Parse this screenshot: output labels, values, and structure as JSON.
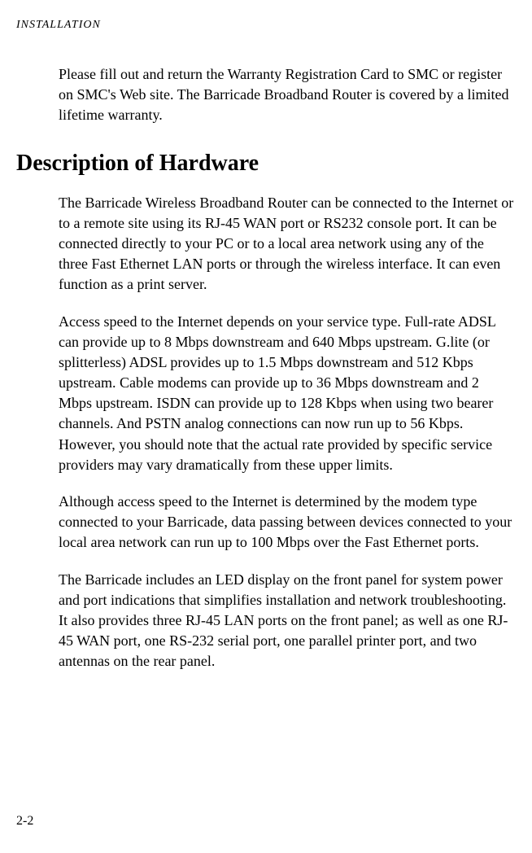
{
  "header": "INSTALLATION",
  "para1": "Please fill out and return the Warranty Registration Card to SMC or register on SMC's Web site. The Barricade Broadband Router is covered by a limited lifetime warranty.",
  "heading": "Description of Hardware",
  "para2": "The Barricade Wireless Broadband Router can be connected to the Internet or to a remote site using its RJ-45 WAN port or RS232 console port. It can be connected directly to your PC or to a local area network using any of the three Fast Ethernet LAN ports or through the wireless interface. It can even function as a print server.",
  "para3": "Access speed to the Internet depends on your service type. Full-rate ADSL can provide up to 8 Mbps downstream and 640 Mbps upstream. G.lite (or splitterless) ADSL provides up to 1.5 Mbps downstream and 512 Kbps upstream. Cable modems can provide up to 36 Mbps downstream and 2 Mbps upstream. ISDN can provide up to 128 Kbps when using two bearer channels. And PSTN analog connections can now run up to 56 Kbps. However, you should note that the actual rate provided by specific service providers may vary dramatically from these upper limits.",
  "para4": "Although access speed to the Internet is determined by the modem type connected to your Barricade, data passing between devices connected to your local area network can run up to 100 Mbps over the Fast Ethernet ports.",
  "para5": "The Barricade includes an LED display on the front panel for system power and port indications that simplifies installation and network troubleshooting. It also provides three RJ-45 LAN ports on the front panel; as well as one RJ-45 WAN port, one RS-232 serial port, one parallel printer port, and two antennas on the rear panel.",
  "pageNumber": "2-2",
  "styling": {
    "body_width": 654,
    "body_height": 1048,
    "background_color": "#ffffff",
    "text_color": "#000000",
    "font_family": "Garamond, Georgia, 'Times New Roman', serif",
    "header_fontsize": 14,
    "paragraph_fontsize": 18,
    "paragraph_lineheight": 1.4,
    "heading_fontsize": 28,
    "heading_fontweight": "bold",
    "pagenum_fontsize": 16,
    "content_padding_left": 52
  }
}
